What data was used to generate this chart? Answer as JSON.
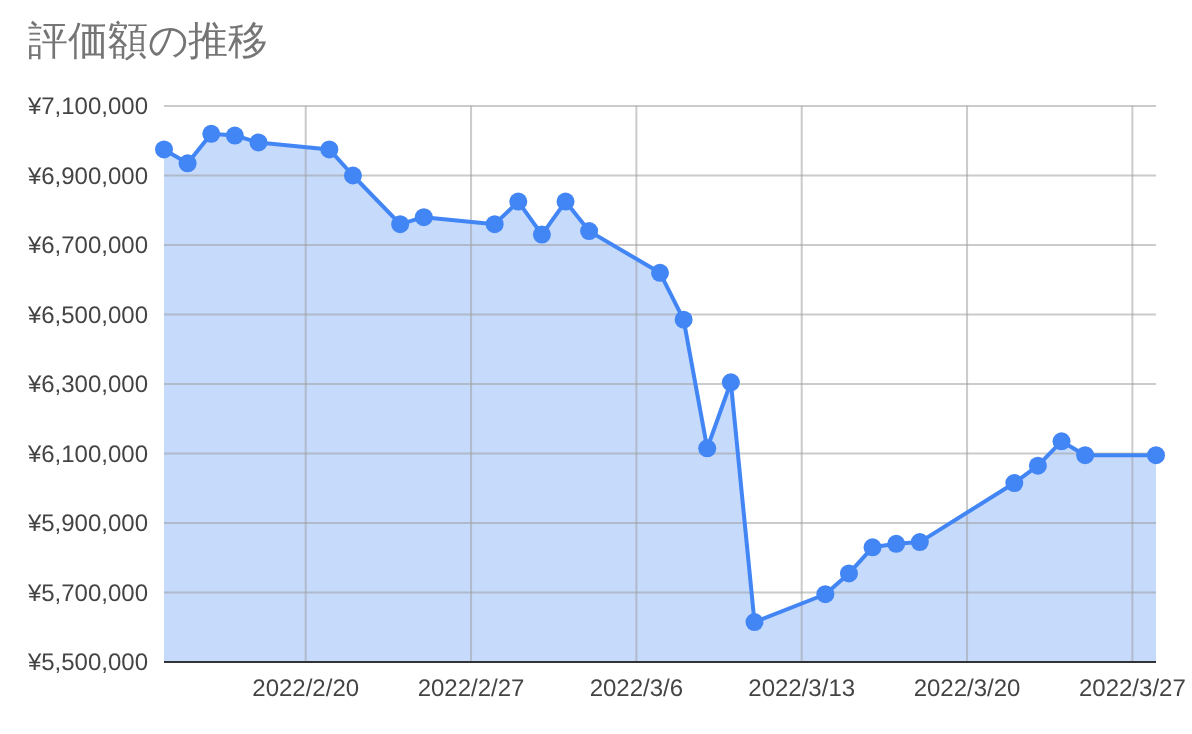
{
  "chart_data": {
    "type": "area",
    "title": "評価額の推移",
    "x": [
      "2022-02-14",
      "2022-02-15",
      "2022-02-16",
      "2022-02-17",
      "2022-02-18",
      "2022-02-21",
      "2022-02-22",
      "2022-02-24",
      "2022-02-25",
      "2022-02-28",
      "2022-03-01",
      "2022-03-02",
      "2022-03-03",
      "2022-03-04",
      "2022-03-07",
      "2022-03-08",
      "2022-03-09",
      "2022-03-10",
      "2022-03-11",
      "2022-03-14",
      "2022-03-15",
      "2022-03-16",
      "2022-03-17",
      "2022-03-18",
      "2022-03-22",
      "2022-03-23",
      "2022-03-24",
      "2022-03-25",
      "2022-03-28"
    ],
    "values": [
      6975000,
      6935000,
      7020000,
      7015000,
      6995000,
      6975000,
      6900000,
      6760000,
      6780000,
      6760000,
      6825000,
      6730000,
      6825000,
      6740000,
      6620000,
      6485000,
      6115000,
      6305000,
      5615000,
      5695000,
      5755000,
      5830000,
      5840000,
      5845000,
      6015000,
      6065000,
      6135000,
      6095000,
      6095000
    ],
    "color": "#4285f4",
    "marker": "circle",
    "grid": true,
    "xlim": [
      "2022-02-14",
      "2022-03-28"
    ],
    "xticks": [
      {
        "value": "2022-02-20",
        "label": "2022/2/20"
      },
      {
        "value": "2022-02-27",
        "label": "2022/2/27"
      },
      {
        "value": "2022-03-06",
        "label": "2022/3/6"
      },
      {
        "value": "2022-03-13",
        "label": "2022/3/13"
      },
      {
        "value": "2022-03-20",
        "label": "2022/3/20"
      },
      {
        "value": "2022-03-27",
        "label": "2022/3/27"
      }
    ],
    "ylim": [
      5500000,
      7100000
    ],
    "yticks": [
      {
        "value": 5500000,
        "label": "¥5,500,000"
      },
      {
        "value": 5700000,
        "label": "¥5,700,000"
      },
      {
        "value": 5900000,
        "label": "¥5,900,000"
      },
      {
        "value": 6100000,
        "label": "¥6,100,000"
      },
      {
        "value": 6300000,
        "label": "¥6,300,000"
      },
      {
        "value": 6500000,
        "label": "¥6,500,000"
      },
      {
        "value": 6700000,
        "label": "¥6,700,000"
      },
      {
        "value": 6900000,
        "label": "¥6,900,000"
      },
      {
        "value": 7100000,
        "label": "¥7,100,000"
      }
    ]
  }
}
